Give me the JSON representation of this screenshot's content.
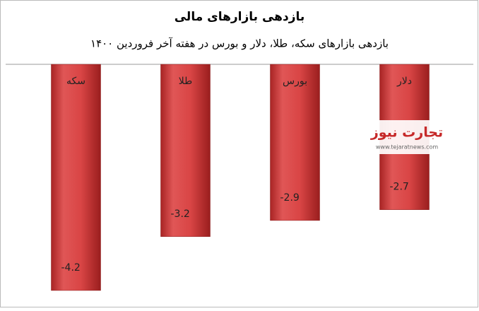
{
  "chart_data": {
    "type": "bar",
    "title": "بازدهی بازارهای مالی",
    "subtitle": "بازدهی بازارهای سکه، طلا، دلار و بورس در هفته آخر فروردین ۱۴۰۰",
    "categories": [
      "سکه",
      "طلا",
      "بورس",
      "دلار"
    ],
    "values": [
      -4.2,
      -3.2,
      -2.9,
      -2.7
    ],
    "color": "#d94545",
    "ylim": [
      -4.45,
      0
    ]
  },
  "watermark": {
    "logo": "تجارت نیوز",
    "url": "www.tejaratnews.com"
  }
}
